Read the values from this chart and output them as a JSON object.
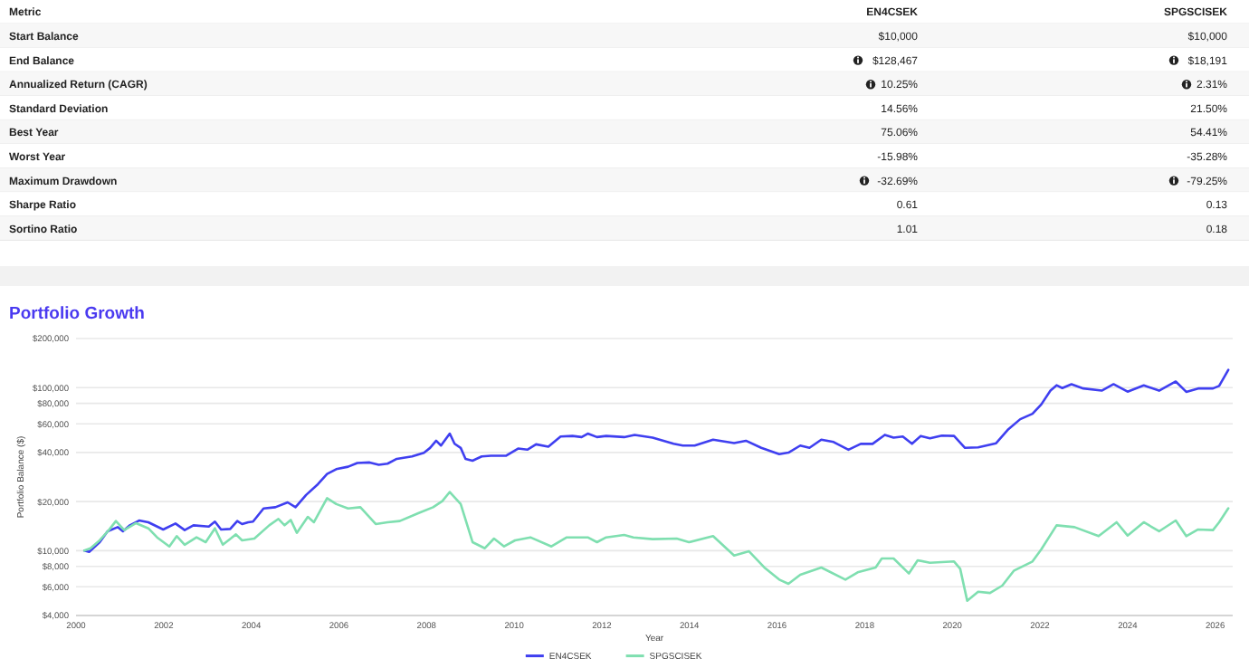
{
  "chart_data": [
    {
      "type": "other",
      "annotations": [
        "Metric",
        "EN4CSEK",
        "SPGSCISEK",
        "Start Balance",
        "$10,000",
        "$10,000",
        "End Balance",
        "$128,467",
        "$18,191",
        "Annualized Return (CAGR)",
        "10.25%",
        "2.31%",
        "Standard Deviation",
        "14.56%",
        "21.50%",
        "Best Year",
        "75.06%",
        "54.41%",
        "Worst Year",
        "-15.98%",
        "-35.28%",
        "Maximum Drawdown",
        "-32.69%",
        "-79.25%",
        "Sharpe Ratio",
        "0.61",
        "0.13",
        "Sortino Ratio",
        "1.01",
        "0.18"
      ]
    },
    {
      "type": "line",
      "title": "Portfolio Growth",
      "xlabel": "Year",
      "ylabel": "Portfolio Balance ($)",
      "log": true,
      "grid": "y",
      "legend": "bottom",
      "xlim": [
        2000,
        2026.4
      ],
      "xticks": [
        2000,
        2002,
        2004,
        2006,
        2008,
        2010,
        2012,
        2014,
        2016,
        2018,
        2020,
        2022,
        2024,
        2026
      ],
      "ylim": [
        4000,
        200000
      ],
      "yticks": [
        {
          "value": 4000,
          "label": "$4,000"
        },
        {
          "value": 6000,
          "label": "$6,000"
        },
        {
          "value": 8000,
          "label": "$8,000"
        },
        {
          "value": 10000,
          "label": "$10,000"
        },
        {
          "value": 20000,
          "label": "$20,000"
        },
        {
          "value": 40000,
          "label": "$40,000"
        },
        {
          "value": 60000,
          "label": "$60,000"
        },
        {
          "value": 80000,
          "label": "$80,000"
        },
        {
          "value": 100000,
          "label": "$100,000"
        },
        {
          "value": 200000,
          "label": "$200,000"
        }
      ],
      "series": [
        {
          "name": "EN4CSEK",
          "color": "#3f3ff0",
          "x": [
            2000.19,
            2000.3,
            2000.54,
            2000.72,
            2000.95,
            2001.07,
            2001.23,
            2001.44,
            2001.65,
            2001.99,
            2002.27,
            2002.48,
            2002.68,
            2003.03,
            2003.17,
            2003.31,
            2003.52,
            2003.68,
            2003.79,
            2003.93,
            2004.04,
            2004.28,
            2004.55,
            2004.83,
            2005.01,
            2005.25,
            2005.52,
            2005.73,
            2005.94,
            2006.21,
            2006.42,
            2006.7,
            2006.91,
            2007.11,
            2007.32,
            2007.67,
            2007.94,
            2008.08,
            2008.22,
            2008.33,
            2008.53,
            2008.64,
            2008.78,
            2008.89,
            2009.05,
            2009.26,
            2009.47,
            2009.81,
            2010.09,
            2010.3,
            2010.5,
            2010.78,
            2011.06,
            2011.33,
            2011.54,
            2011.68,
            2011.89,
            2012.1,
            2012.51,
            2012.75,
            2013.16,
            2013.64,
            2013.85,
            2014.12,
            2014.54,
            2015.02,
            2015.29,
            2015.64,
            2016.05,
            2016.26,
            2016.53,
            2016.74,
            2017.01,
            2017.29,
            2017.63,
            2017.91,
            2018.18,
            2018.46,
            2018.66,
            2018.87,
            2019.08,
            2019.28,
            2019.49,
            2019.76,
            2020.04,
            2020.29,
            2020.59,
            2021.0,
            2021.28,
            2021.55,
            2021.83,
            2022.03,
            2022.24,
            2022.38,
            2022.51,
            2022.72,
            2022.99,
            2023.41,
            2023.68,
            2024.0,
            2024.37,
            2024.72,
            2025.1,
            2025.34,
            2025.61,
            2025.95,
            2026.09,
            2026.3
          ],
          "values": [
            10000,
            9830,
            11260,
            13140,
            13940,
            13140,
            14300,
            15300,
            14930,
            13480,
            14670,
            13360,
            14300,
            14060,
            15060,
            13480,
            13590,
            15190,
            14550,
            14930,
            15060,
            18150,
            18460,
            19770,
            18460,
            21930,
            25540,
            29530,
            31600,
            32720,
            34450,
            34750,
            33600,
            34150,
            36560,
            37850,
            39860,
            42660,
            47200,
            44120,
            52220,
            45250,
            42660,
            36560,
            35620,
            37850,
            38180,
            38180,
            42300,
            41600,
            44900,
            43400,
            50100,
            50500,
            49700,
            52220,
            49700,
            50500,
            49700,
            51300,
            49300,
            45200,
            44100,
            44100,
            47900,
            45700,
            47200,
            42700,
            39100,
            39900,
            44100,
            42700,
            47900,
            46400,
            41600,
            45200,
            45200,
            51300,
            49300,
            50100,
            45200,
            50500,
            48900,
            50800,
            50500,
            42700,
            43000,
            45600,
            55600,
            64000,
            69100,
            78800,
            95800,
            103300,
            99300,
            104900,
            98800,
            95800,
            104900,
            94400,
            103300,
            95800,
            109000,
            94200,
            98800,
            98800,
            102400,
            128467
          ]
        },
        {
          "name": "SPGSCISEK",
          "color": "#7fdfb0",
          "x": [
            2000.19,
            2000.33,
            2000.54,
            2000.75,
            2000.91,
            2001.1,
            2001.37,
            2001.65,
            2001.85,
            2002.13,
            2002.3,
            2002.48,
            2002.75,
            2002.96,
            2003.17,
            2003.35,
            2003.65,
            2003.79,
            2004.07,
            2004.41,
            2004.62,
            2004.76,
            2004.9,
            2005.04,
            2005.29,
            2005.43,
            2005.73,
            2005.94,
            2006.21,
            2006.49,
            2006.84,
            2007.11,
            2007.39,
            2007.81,
            2008.15,
            2008.36,
            2008.53,
            2008.78,
            2009.05,
            2009.33,
            2009.54,
            2009.77,
            2010.02,
            2010.37,
            2010.85,
            2011.2,
            2011.68,
            2011.89,
            2012.1,
            2012.51,
            2012.72,
            2013.16,
            2013.71,
            2013.99,
            2014.54,
            2015.02,
            2015.36,
            2015.71,
            2016.05,
            2016.26,
            2016.53,
            2017.01,
            2017.56,
            2017.84,
            2018.25,
            2018.39,
            2018.66,
            2019.01,
            2019.21,
            2019.49,
            2020.04,
            2020.18,
            2020.34,
            2020.59,
            2020.86,
            2021.14,
            2021.41,
            2021.83,
            2022.03,
            2022.38,
            2022.79,
            2023.34,
            2023.75,
            2024.0,
            2024.37,
            2024.72,
            2025.1,
            2025.34,
            2025.61,
            2025.95,
            2026.09,
            2026.3
          ],
          "values": [
            10000,
            10340,
            11560,
            13360,
            15190,
            13360,
            14740,
            13700,
            12060,
            10610,
            12270,
            10870,
            12060,
            11270,
            13700,
            10870,
            12580,
            11560,
            11860,
            14300,
            15650,
            14300,
            15430,
            12860,
            16100,
            14930,
            20990,
            19300,
            18150,
            18460,
            14550,
            14930,
            15190,
            16970,
            18460,
            20130,
            22900,
            19300,
            11270,
            10340,
            11860,
            10610,
            11560,
            12060,
            10610,
            12060,
            12060,
            11270,
            12060,
            12470,
            12060,
            11760,
            11860,
            11270,
            12270,
            9340,
            9910,
            7880,
            6640,
            6260,
            7110,
            7880,
            6640,
            7360,
            7880,
            8950,
            8950,
            7240,
            8720,
            8430,
            8580,
            7740,
            4930,
            5600,
            5500,
            6100,
            7550,
            8580,
            10170,
            14300,
            13940,
            12270,
            14930,
            12370,
            14930,
            13140,
            15310,
            12270,
            13480,
            13360,
            14930,
            18191
          ]
        }
      ]
    }
  ]
}
